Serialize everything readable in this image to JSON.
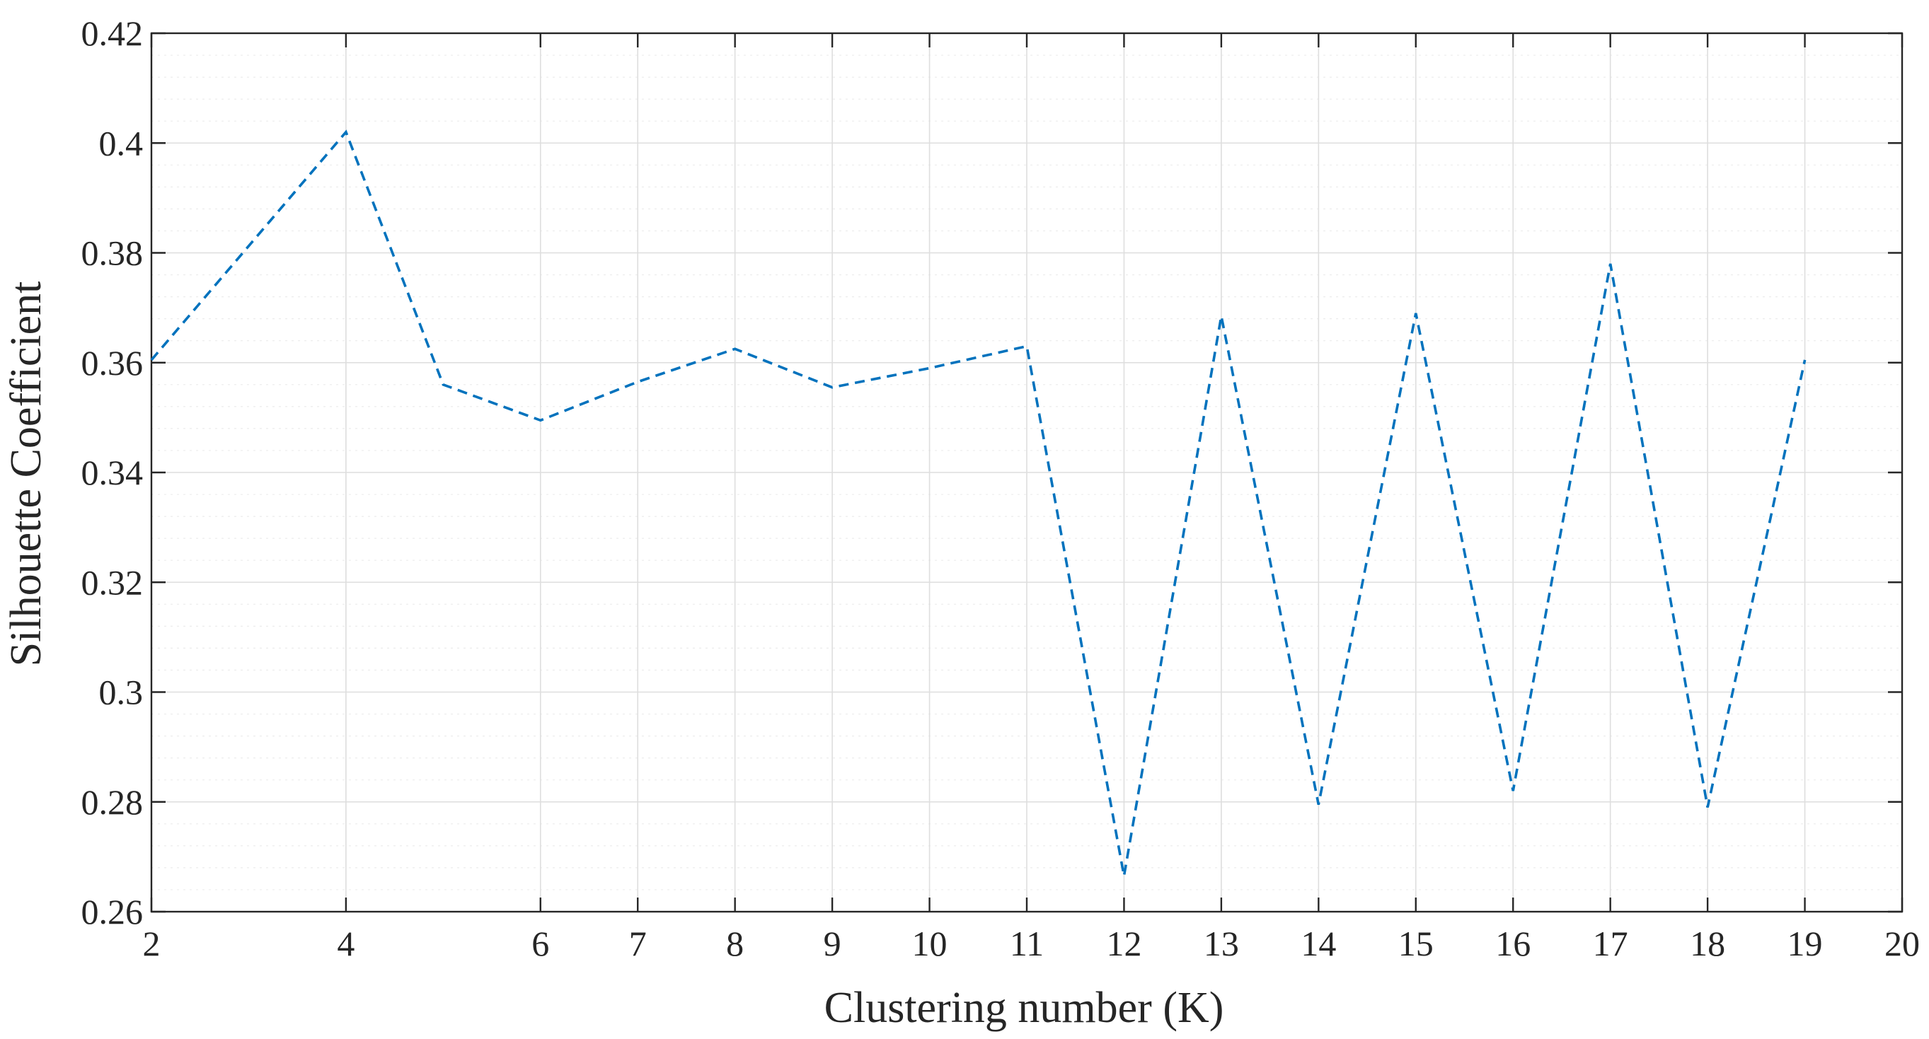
{
  "chart_data": {
    "type": "line",
    "title": "",
    "xlabel": "Clustering number (K)",
    "ylabel": "Silhouette Coefficient",
    "xlim": [
      2,
      20
    ],
    "ylim": [
      0.26,
      0.42
    ],
    "xticks": [
      2,
      4,
      6,
      7,
      8,
      9,
      10,
      11,
      12,
      13,
      14,
      15,
      16,
      17,
      18,
      19,
      20
    ],
    "yticks": [
      0.26,
      0.28,
      0.3,
      0.32,
      0.34,
      0.36,
      0.38,
      0.4,
      0.42
    ],
    "ytick_labels": [
      "0.26",
      "0.28",
      "0.3",
      "0.32",
      "0.34",
      "0.36",
      "0.38",
      "0.4",
      "0.42"
    ],
    "grid": true,
    "minor_grid": true,
    "series": [
      {
        "color": "#0072BD",
        "style": "dashed",
        "x": [
          2,
          4,
          5,
          6,
          7,
          8,
          9,
          10,
          11,
          12,
          13,
          14,
          15,
          16,
          17,
          18,
          19
        ],
        "y": [
          0.3605,
          0.402,
          0.356,
          0.3495,
          0.3565,
          0.3625,
          0.3555,
          0.359,
          0.363,
          0.2665,
          0.3685,
          0.2795,
          0.369,
          0.282,
          0.378,
          0.279,
          0.3605
        ]
      }
    ]
  }
}
